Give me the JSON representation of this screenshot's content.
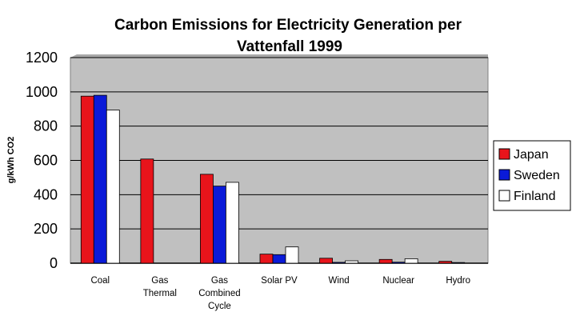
{
  "chart_data": {
    "type": "bar",
    "title_line1": "Carbon Emissions for Electricity Generation per",
    "title_line2": "Vattenfall 1999",
    "xlabel": "",
    "ylabel": "g/kWh CO2",
    "ylim": [
      0,
      1200
    ],
    "yticks": [
      "0",
      "200",
      "400",
      "600",
      "800",
      "1000",
      "1200"
    ],
    "grid": true,
    "legend_position": "right",
    "categories": [
      [
        "Coal"
      ],
      [
        "Gas",
        "Thermal"
      ],
      [
        "Gas",
        "Combined",
        "Cycle"
      ],
      [
        "Solar PV"
      ],
      [
        "Wind"
      ],
      [
        "Nuclear"
      ],
      [
        "Hydro"
      ]
    ],
    "series": [
      {
        "name": "Japan",
        "color": "#e8141b",
        "values": [
          975,
          608,
          519,
          53,
          29,
          22,
          11
        ]
      },
      {
        "name": "Sweden",
        "color": "#0a1ad8",
        "values": [
          980,
          null,
          450,
          50,
          5,
          6,
          4
        ]
      },
      {
        "name": "Finland",
        "color": "#ffffff",
        "values": [
          894,
          null,
          472,
          95,
          14,
          26,
          0
        ]
      }
    ],
    "plot_background": "#c0c0c0"
  }
}
